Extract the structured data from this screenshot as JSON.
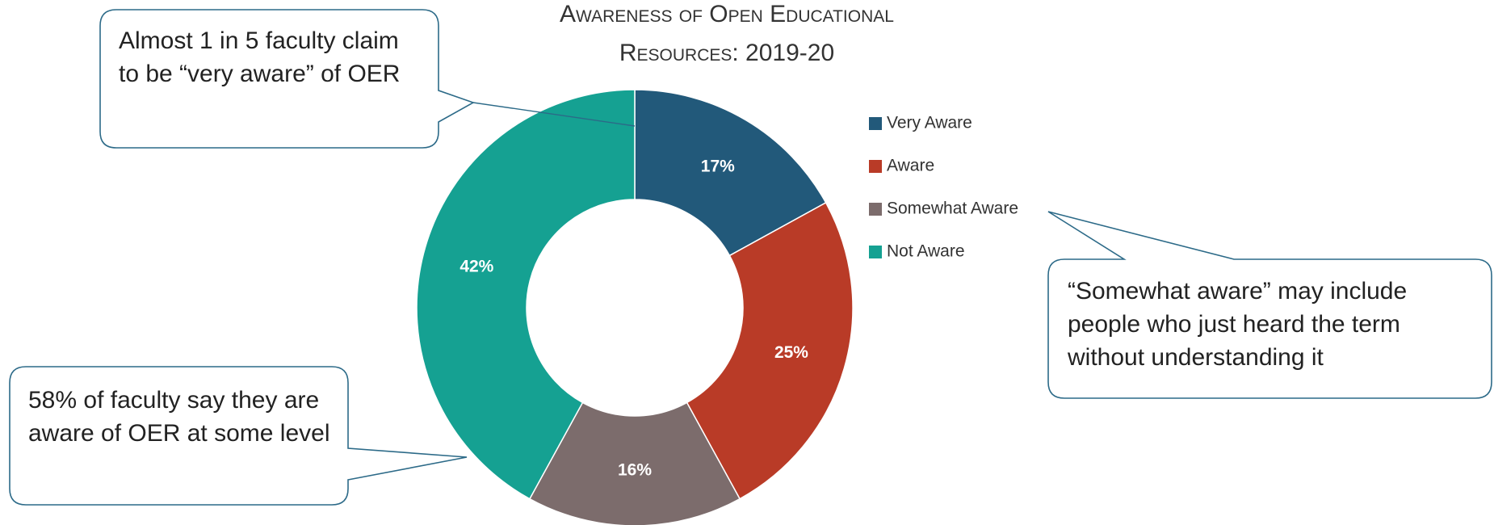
{
  "chart_data": {
    "type": "donut",
    "title": "Awareness of Open Educational Resources: 2019-20",
    "categories": [
      "Very Aware",
      "Aware",
      "Somewhat Aware",
      "Not Aware"
    ],
    "values": [
      17,
      25,
      16,
      42
    ],
    "value_labels": [
      "17%",
      "25%",
      "16%",
      "42%"
    ],
    "colors": [
      "#22597a",
      "#b93b27",
      "#7c6c6c",
      "#15a192"
    ],
    "legend": "right",
    "annotations": [
      {
        "text": "Almost 1 in 5 faculty claim to be “very aware” of OER"
      },
      {
        "text": "58% of faculty say they are aware of OER at some level"
      },
      {
        "text": "“Somewhat aware” may include people who just heard the term without understanding it"
      }
    ]
  }
}
